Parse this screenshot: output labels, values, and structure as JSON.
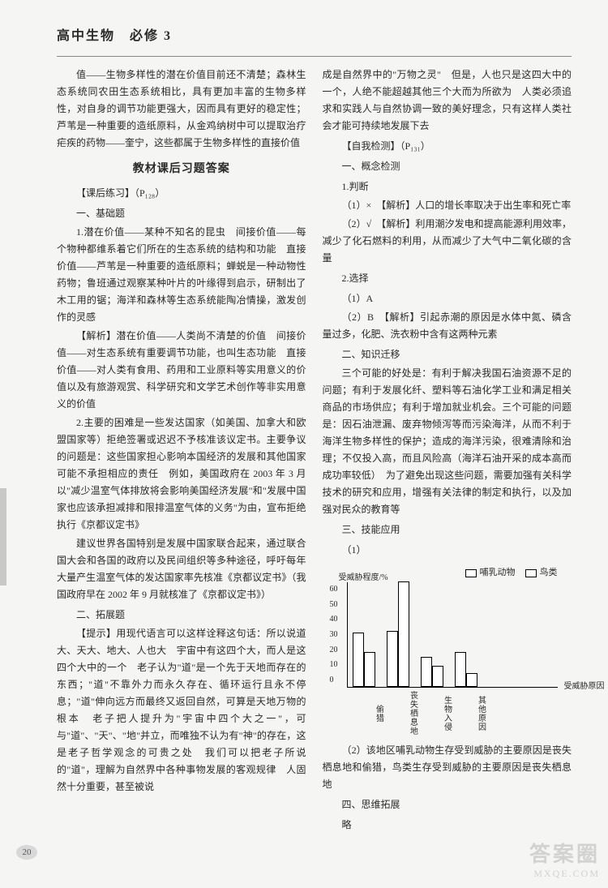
{
  "header": "高中生物　必修 3",
  "left_column": {
    "p1": "值——生物多样性的潜在价值目前还不清楚；森林生态系统同农田生态系统相比，具有更加丰富的生物多样性，对自身的调节功能更强大，因而具有更好的稳定性；芦苇是一种重要的造纸原料，从金鸡纳树中可以提取治疗疟疾的药物——奎宁，这些都属于生物多样性的直接价值",
    "section_title": "教材课后习题答案",
    "p2": "【课后练习】（P₁₂₈）",
    "p3": "一、基础题",
    "p4": "1.潜在价值——某种不知名的昆虫　间接价值——每个物种都维系着它们所在的生态系统的结构和功能　直接价值——芦苇是一种重要的造纸原料；蝉蜕是一种动物性药物；鲁班通过观察某种叶片的叶缘得到启示，研制出了木工用的锯；海洋和森林等生态系统能陶冶情操，激发创作的灵感",
    "p5": "【解析】潜在价值——人类尚不清楚的价值　间接价值——对生态系统有重要调节功能，也叫生态功能　直接价值——对人类有食用、药用和工业原料等实用意义的价值以及有旅游观赏、科学研究和文学艺术创作等非实用意义的价值",
    "p6": "2.主要的困难是一些发达国家（如美国、加拿大和欧盟国家等）拒绝签署或迟迟不予核准该议定书。主要争议的问题是：这些国家担心影响本国经济的发展和其他国家可能不承担相应的责任　例如，美国政府在 2003 年 3 月以\"减少温室气体排放将会影响美国经济发展\"和\"发展中国家也应该承担减排和限排温室气体的义务\"为由，宣布拒绝执行《京都议定书》",
    "p7": "建议世界各国特别是发展中国家联合起来，通过联合国大会和各国的政府以及民间组织等多种途径，呼吁每年大量产生温室气体的发达国家率先核准《京都议定书》（我国政府早在 2002 年 9 月就核准了《京都议定书》）",
    "p8": "二、拓展题",
    "p9": "【提示】用现代语言可以这样诠释这句话：所以说道大、天大、地大、人也大　宇宙中有这四个大，而人是这四个大中的一个　老子认为\"道\"是一个先于天地而存在的东西；\"道\"不靠外力而永久存在、循环运行且永不停息；\"道\"伸向远方而最终又返回自然，可算是天地万物的根本　老子把人提升为\"宇宙中四个大之一\"，可与\"道\"、\"天\"、\"地\"并立，而唯独不认为有\"神\"的存在，这是老子哲学观念的可贵之处　我们可以把老子所说的\"道\"，理解为自然界中各种事物发展的客观规律　人固然十分重要，甚至被说"
  },
  "right_column": {
    "p1": "成是自然界中的\"万物之灵\"　但是，人也只是这四大中的一个，人绝不能超越其他三个大而为所欲为　人类必须追求和实践人与自然协调一致的美好理念，只有这样人类社会才能可持续地发展下去",
    "p2": "【自我检测】（P₁₃₁）",
    "p3": "一、概念检测",
    "p4": "1.判断",
    "p5": "（1）×　【解析】人口的增长率取决于出生率和死亡率",
    "p6": "（2）√　【解析】利用潮汐发电和提高能源利用效率，减少了化石燃料的利用，从而减少了大气中二氧化碳的含量",
    "p7": "2.选择",
    "p8": "（1）A",
    "p9": "（2）B　【解析】引起赤潮的原因是水体中氮、磷含量过多，化肥、洗衣粉中含有这两种元素",
    "p10": "二、知识迁移",
    "p11": "三个可能的好处是：有利于解决我国石油资源不足的问题；有利于发展化纤、塑料等石油化学工业和满足相关商品的市场供应；有利于增加就业机会。三个可能的问题是：因石油泄漏、废弃物倾泻等而污染海洋，从而不利于海洋生物多样性的保护；造成的海洋污染，很难清除和治理；不仅投入高，而且风险高（海洋石油开采的成本高而成功率较低）　为了避免出现这些问题，需要加强有关科学技术的研究和应用，增强有关法律的制定和执行，以及加强对民众的教育等",
    "p12": "三、技能应用",
    "p13": "（1）",
    "chart": {
      "y_label": "受威胁程度/%",
      "x_axis_label": "受威胁原因",
      "y_ticks": [
        "60",
        "50",
        "40",
        "30",
        "20",
        "10",
        "0"
      ],
      "legend": {
        "a": "哺乳动物",
        "b": "鸟类"
      },
      "categories": [
        "偷猎",
        "丧失栖息地",
        "生物入侵",
        "其他原因"
      ],
      "series_a": [
        31,
        32,
        17,
        20
      ],
      "series_b": [
        20,
        60,
        12,
        8
      ],
      "bar_border": "#000000",
      "bar_fill": "#ffffff",
      "max_value": 60
    },
    "p14": "（2）该地区哺乳动物生存受到威胁的主要原因是丧失栖息地和偷猎，鸟类生存受到威胁的主要原因是丧失栖息地",
    "p15": "四、思维拓展",
    "p16": "略"
  },
  "page_number": "20",
  "watermark": {
    "main": "答案圈",
    "sub": "MXQE.COM"
  }
}
